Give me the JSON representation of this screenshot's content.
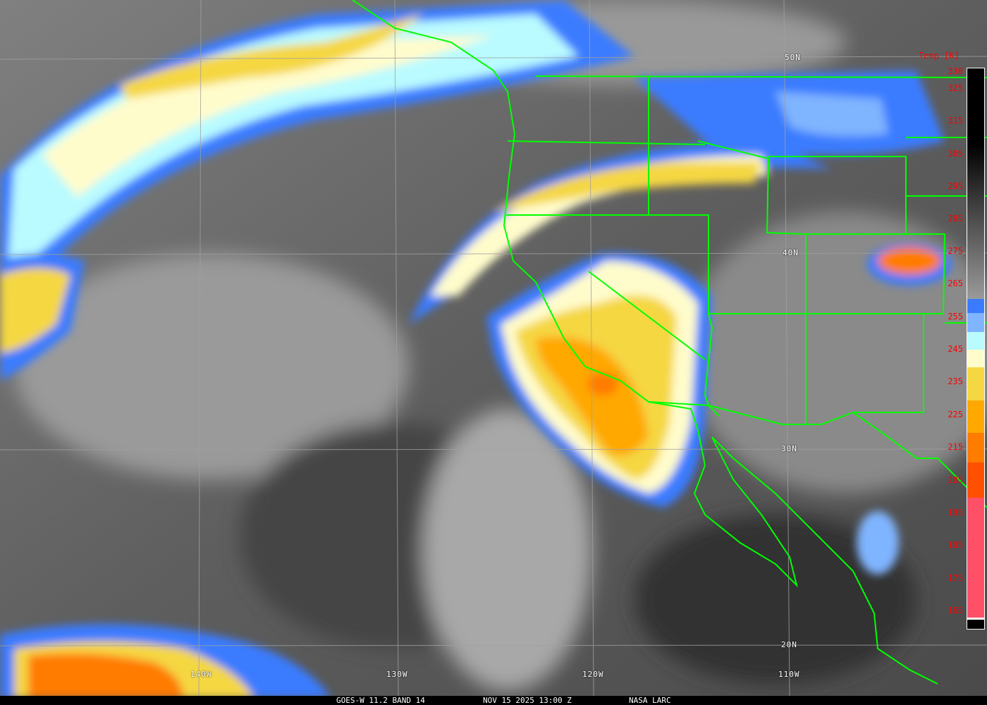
{
  "caption": {
    "product": "GOES-W 11.2 BAND 14",
    "datetime": "NOV 15 2025 13:00 Z",
    "source": "NASA LARC"
  },
  "grid": {
    "latitudes": [
      "50N",
      "40N",
      "30N",
      "20N"
    ],
    "longitudes": [
      "140W",
      "130W",
      "120W",
      "110W"
    ]
  },
  "scale": {
    "title": "Temp [K]",
    "ticks": [
      "330",
      "325",
      "315",
      "305",
      "295",
      "285",
      "275",
      "265",
      "255",
      "245",
      "235",
      "225",
      "215",
      "205",
      "195",
      "185",
      "175",
      "165"
    ],
    "colors": {
      "blue": "#3b7bff",
      "light_blue": "#7fb4ff",
      "cyan": "#b9fbff",
      "pale_yellow": "#fffccc",
      "yellow": "#f5d742",
      "orange": "#ffa800",
      "dark_orange": "#ff7c00",
      "red_orange": "#ff5000",
      "pink": "#ff5068"
    }
  },
  "map_colors": {
    "borders": "#00ff00",
    "grid": "#a0a0a0"
  }
}
